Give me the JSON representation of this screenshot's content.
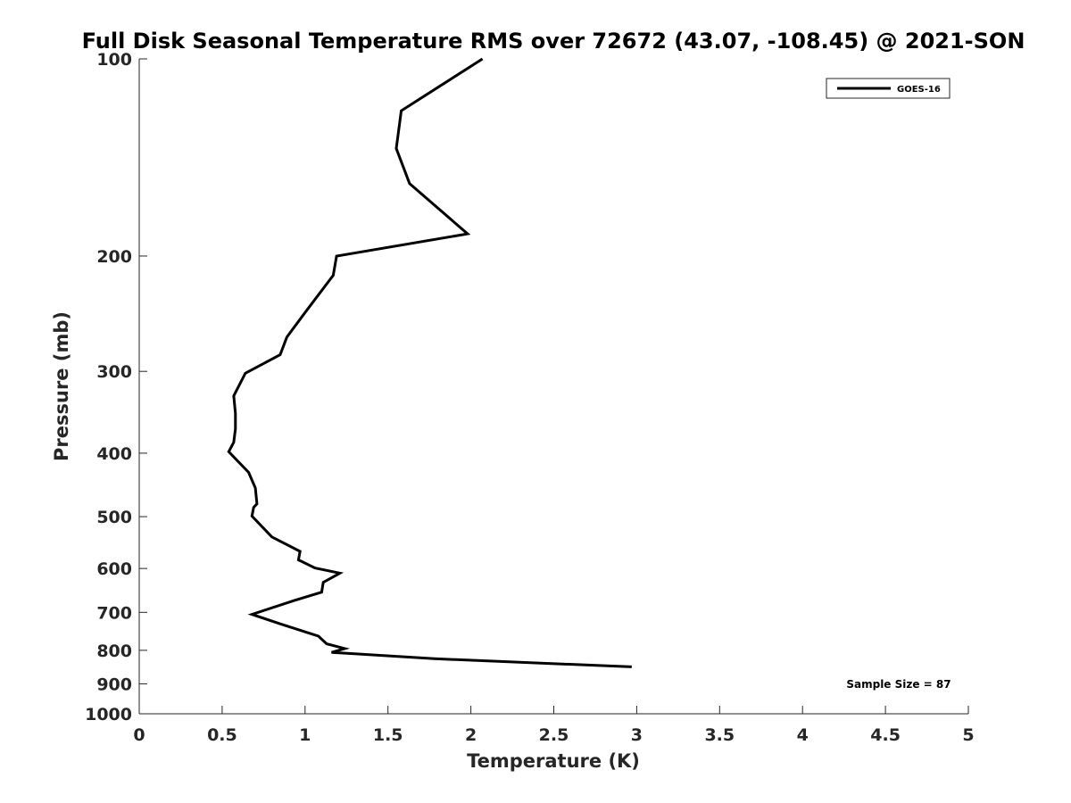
{
  "chart_data": {
    "type": "line",
    "title": "Full Disk Seasonal Temperature RMS over 72672 (43.07, -108.45) @ 2021-SON",
    "xlabel": "Temperature (K)",
    "ylabel": "Pressure (mb)",
    "xlim": [
      0,
      5
    ],
    "ylim": [
      100,
      1000
    ],
    "y_scale": "log",
    "y_reversed": true,
    "x_ticks": [
      "0",
      "0.5",
      "1",
      "1.5",
      "2",
      "2.5",
      "3",
      "3.5",
      "4",
      "4.5",
      "5"
    ],
    "y_ticks": [
      "100",
      "200",
      "300",
      "400",
      "500",
      "600",
      "700",
      "800",
      "900",
      "1000"
    ],
    "grid": false,
    "legend_position": "top-right",
    "series": [
      {
        "name": "GOES-16",
        "color": "#000000",
        "x": [
          2.07,
          1.58,
          1.55,
          1.63,
          1.98,
          1.19,
          1.17,
          1.0,
          0.89,
          0.85,
          0.64,
          0.57,
          0.58,
          0.58,
          0.57,
          0.54,
          0.66,
          0.7,
          0.71,
          0.69,
          0.68,
          0.8,
          0.97,
          0.96,
          1.06,
          1.21,
          1.11,
          1.1,
          0.93,
          0.68,
          0.85,
          1.08,
          1.13,
          1.24,
          1.16,
          1.78,
          2.97
        ],
        "y": [
          100,
          120,
          137,
          155,
          185,
          200,
          214,
          244,
          266,
          283,
          302,
          327,
          348,
          367,
          385,
          398,
          428,
          452,
          478,
          484,
          499,
          537,
          565,
          582,
          599,
          610,
          630,
          652,
          672,
          705,
          729,
          761,
          782,
          795,
          806,
          824,
          848
        ]
      }
    ],
    "annotations": [
      "Sample Size = 87"
    ]
  }
}
